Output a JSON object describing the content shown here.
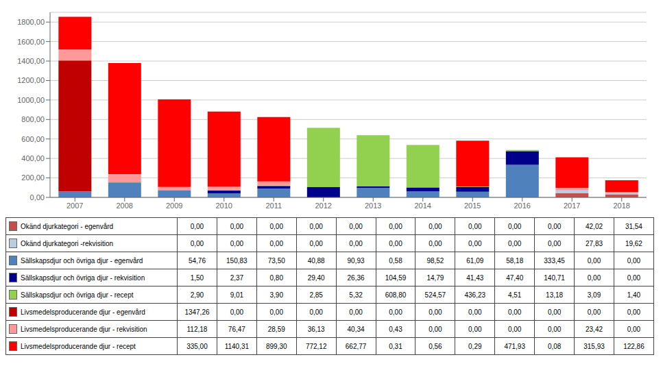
{
  "chart_data": {
    "type": "bar",
    "stacked": true,
    "grid": true,
    "categories": [
      "2007",
      "2008",
      "2009",
      "2010",
      "2011",
      "2012",
      "2013",
      "2014",
      "2015",
      "2016",
      "2017",
      "2018"
    ],
    "ylim": [
      0,
      1900
    ],
    "yticks": [
      {
        "value": 0,
        "label": "0,00"
      },
      {
        "value": 200,
        "label": "200,00"
      },
      {
        "value": 400,
        "label": "400,00"
      },
      {
        "value": 600,
        "label": "600,00"
      },
      {
        "value": 800,
        "label": "800,00"
      },
      {
        "value": 1000,
        "label": "1000,00"
      },
      {
        "value": 1200,
        "label": "1200,00"
      },
      {
        "value": 1400,
        "label": "1400,00"
      },
      {
        "value": 1600,
        "label": "1600,00"
      },
      {
        "value": 1800,
        "label": "1800,00"
      }
    ],
    "series": [
      {
        "name": "Okänd djurkategori - egenvård",
        "color": "#c0504d",
        "values": [
          0.0,
          0.0,
          0.0,
          0.0,
          0.0,
          0.0,
          0.0,
          0.0,
          0.0,
          0.0,
          42.02,
          31.54
        ],
        "value_labels": [
          "0,00",
          "0,00",
          "0,00",
          "0,00",
          "0,00",
          "0,00",
          "0,00",
          "0,00",
          "0,00",
          "0,00",
          "42,02",
          "31,54"
        ]
      },
      {
        "name": "Okänd djurkategori -rekvisition",
        "color": "#b8cce4",
        "values": [
          0.0,
          0.0,
          0.0,
          0.0,
          0.0,
          0.0,
          0.0,
          0.0,
          0.0,
          0.0,
          27.83,
          19.62
        ],
        "value_labels": [
          "0,00",
          "0,00",
          "0,00",
          "0,00",
          "0,00",
          "0,00",
          "0,00",
          "0,00",
          "0,00",
          "0,00",
          "27,83",
          "19,62"
        ]
      },
      {
        "name": "Sällskapsdjur och övriga djur - egenvård",
        "color": "#4f81bd",
        "values": [
          54.76,
          150.83,
          73.5,
          40.88,
          90.93,
          0.58,
          98.52,
          61.09,
          58.18,
          333.45,
          0.0,
          0.0
        ],
        "value_labels": [
          "54,76",
          "150,83",
          "73,50",
          "40,88",
          "90,93",
          "0,58",
          "98,52",
          "61,09",
          "58,18",
          "333,45",
          "0,00",
          "0,00"
        ]
      },
      {
        "name": "Sällskapsdjur och övriga djur - rekvisition",
        "color": "#00008b",
        "values": [
          1.5,
          2.37,
          0.8,
          29.4,
          26.36,
          104.59,
          14.79,
          41.43,
          47.4,
          140.71,
          0.0,
          0.0
        ],
        "value_labels": [
          "1,50",
          "2,37",
          "0,80",
          "29,40",
          "26,36",
          "104,59",
          "14,79",
          "41,43",
          "47,40",
          "140,71",
          "0,00",
          "0,00"
        ]
      },
      {
        "name": "Sällskapsdjur och övriga djur - recept",
        "color": "#92d050",
        "values": [
          2.9,
          9.01,
          3.9,
          2.85,
          5.32,
          608.8,
          524.57,
          436.23,
          4.51,
          13.18,
          3.09,
          1.4
        ],
        "value_labels": [
          "2,90",
          "9,01",
          "3,90",
          "2,85",
          "5,32",
          "608,80",
          "524,57",
          "436,23",
          "4,51",
          "13,18",
          "3,09",
          "1,40"
        ]
      },
      {
        "name": "Livsmedelsproducerande djur - egenvård",
        "color": "#c00000",
        "values": [
          1347.26,
          0.0,
          0.0,
          0.0,
          0.0,
          0.0,
          0.0,
          0.0,
          0.0,
          0.0,
          0.0,
          0.0
        ],
        "value_labels": [
          "1347,26",
          "0,00",
          "0,00",
          "0,00",
          "0,00",
          "0,00",
          "0,00",
          "0,00",
          "0,00",
          "0,00",
          "0,00",
          "0,00"
        ]
      },
      {
        "name": "Livsmedelsproducerande djur - rekvisition",
        "color": "#ff9999",
        "values": [
          112.18,
          76.47,
          28.59,
          36.13,
          40.34,
          0.43,
          0.0,
          0.0,
          0.0,
          0.0,
          23.42,
          0.0
        ],
        "value_labels": [
          "112,18",
          "76,47",
          "28,59",
          "36,13",
          "40,34",
          "0,43",
          "0,00",
          "0,00",
          "0,00",
          "0,00",
          "23,42",
          "0,00"
        ]
      },
      {
        "name": "Livsmedelsproducerande djur - recept",
        "color": "#ff0000",
        "values": [
          335.0,
          1140.31,
          899.3,
          772.12,
          662.77,
          0.31,
          0.56,
          0.29,
          471.93,
          0.08,
          315.93,
          122.86
        ],
        "value_labels": [
          "335,00",
          "1140,31",
          "899,30",
          "772,12",
          "662,77",
          "0,31",
          "0,56",
          "0,29",
          "471,93",
          "0,08",
          "315,93",
          "122,86"
        ]
      }
    ]
  }
}
